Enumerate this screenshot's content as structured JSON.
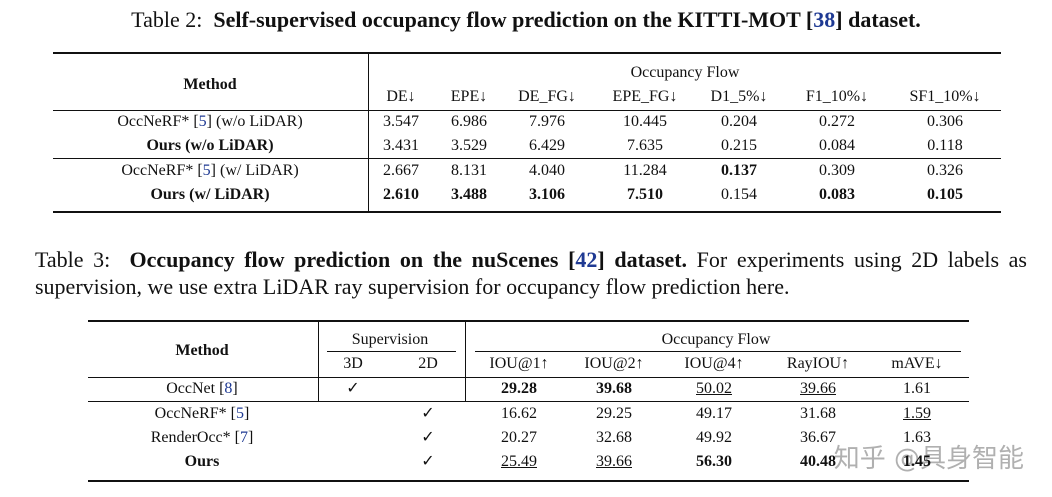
{
  "table2": {
    "caption": {
      "label": "Table 2:",
      "title_pre": "Self-supervised occupancy flow prediction on the KITTI-MOT [",
      "ref": "38",
      "title_post": "] dataset."
    },
    "method_header": "Method",
    "group_header": "Occupancy Flow",
    "columns": [
      "DE↓",
      "EPE↓",
      "DE_FG↓",
      "EPE_FG↓",
      "D1_5%↓",
      "F1_10%↓",
      "SF1_10%↓"
    ],
    "rows": [
      {
        "method": {
          "pre": "OccNeRF* [",
          "ref": "5",
          "post": "] (w/o LiDAR)"
        },
        "method_bold": false,
        "cells": [
          "3.547",
          "6.986",
          "7.976",
          "10.445",
          "0.204",
          "0.272",
          "0.306"
        ],
        "bold": [],
        "underline": []
      },
      {
        "method": {
          "pre": "Ours (w/o LiDAR)"
        },
        "method_bold": true,
        "cells": [
          "3.431",
          "3.529",
          "6.429",
          "7.635",
          "0.215",
          "0.084",
          "0.118"
        ],
        "bold": [],
        "underline": []
      },
      {
        "method": {
          "pre": "OccNeRF* [",
          "ref": "5",
          "post": "] (w/ LiDAR)"
        },
        "method_bold": false,
        "cells": [
          "2.667",
          "8.131",
          "4.040",
          "11.284",
          "0.137",
          "0.309",
          "0.326"
        ],
        "bold": [
          4
        ],
        "underline": []
      },
      {
        "method": {
          "pre": "Ours (w/ LiDAR)"
        },
        "method_bold": true,
        "cells": [
          "2.610",
          "3.488",
          "3.106",
          "7.510",
          "0.154",
          "0.083",
          "0.105"
        ],
        "bold": [
          0,
          1,
          2,
          3,
          5,
          6
        ],
        "underline": []
      }
    ]
  },
  "table3": {
    "caption": {
      "label": "Table 3:",
      "title_pre": "Occupancy flow prediction on the nuScenes [",
      "ref": "42",
      "title_post": "] dataset.",
      "text": "For experiments using 2D labels as supervision, we use extra LiDAR ray supervision for occupancy flow prediction here."
    },
    "method_header": "Method",
    "supervision_header": "Supervision",
    "supervision_columns": [
      "3D",
      "2D"
    ],
    "group_header": "Occupancy Flow",
    "columns": [
      "IOU@1↑",
      "IOU@2↑",
      "IOU@4↑",
      "RayIOU↑",
      "mAVE↓"
    ],
    "rows": [
      {
        "method": {
          "pre": "OccNet [",
          "ref": "8",
          "post": "]"
        },
        "method_bold": false,
        "supervision": [
          "✓",
          null
        ],
        "cells": [
          "29.28",
          "39.68",
          "50.02",
          "39.66",
          "1.61"
        ],
        "bold": [
          0,
          1
        ],
        "underline": [
          2,
          3
        ]
      },
      {
        "method": {
          "pre": "OccNeRF* [",
          "ref": "5",
          "post": "]"
        },
        "method_bold": false,
        "supervision": [
          null,
          "✓"
        ],
        "cells": [
          "16.62",
          "29.25",
          "49.17",
          "31.68",
          "1.59"
        ],
        "bold": [],
        "underline": [
          4
        ]
      },
      {
        "method": {
          "pre": "RenderOcc* [",
          "ref": "7",
          "post": "]"
        },
        "method_bold": false,
        "supervision": [
          null,
          "✓"
        ],
        "cells": [
          "20.27",
          "32.68",
          "49.92",
          "36.67",
          "1.63"
        ],
        "bold": [],
        "underline": []
      },
      {
        "method": {
          "pre": "Ours"
        },
        "method_bold": true,
        "supervision": [
          null,
          "✓"
        ],
        "cells": [
          "25.49",
          "39.66",
          "56.30",
          "40.48",
          "1.45"
        ],
        "bold": [
          2,
          3,
          4
        ],
        "underline": [
          0,
          1
        ]
      }
    ]
  },
  "watermark": "知乎 @具身智能"
}
